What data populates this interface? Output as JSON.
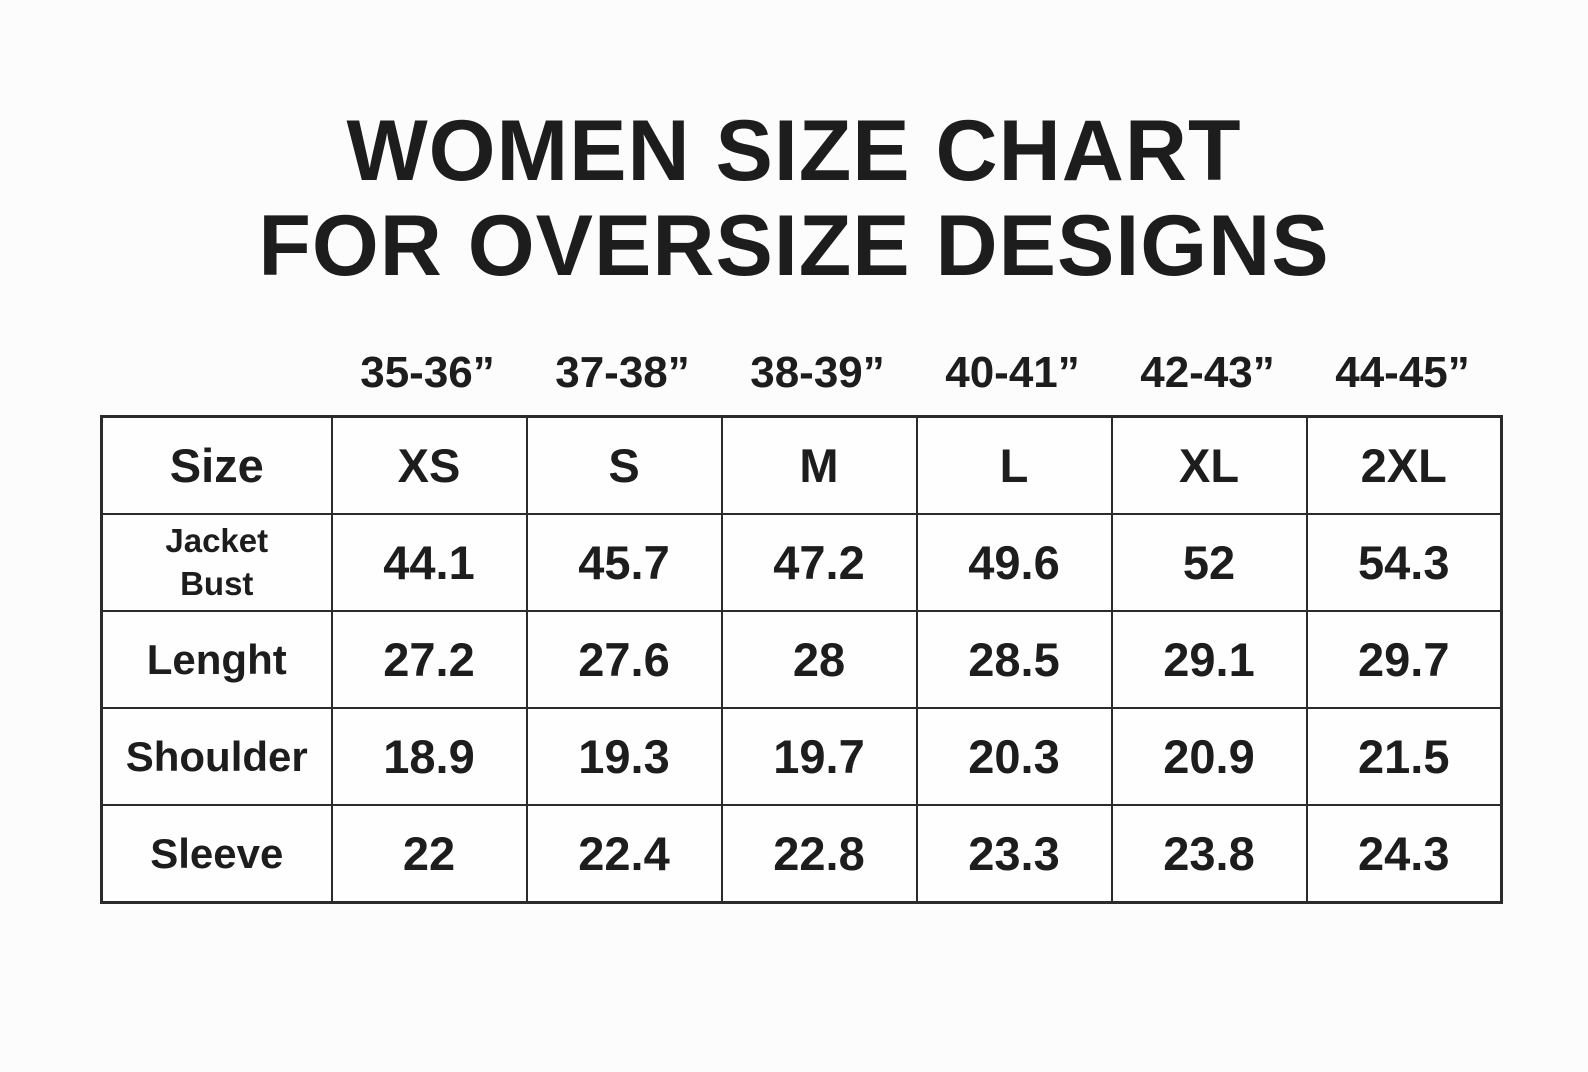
{
  "title": {
    "line1": "WOMEN SIZE CHART",
    "line2": "FOR OVERSIZE DESIGNS"
  },
  "bust_ranges": [
    "35-36”",
    "37-38”",
    "38-39”",
    "40-41”",
    "42-43”",
    "44-45”"
  ],
  "size_table": {
    "header": [
      "Size",
      "XS",
      "S",
      "M",
      "L",
      "XL",
      "2XL"
    ],
    "rows": [
      {
        "label": "Jacket Bust",
        "values": [
          "44.1",
          "45.7",
          "47.2",
          "49.6",
          "52",
          "54.3"
        ]
      },
      {
        "label": "Lenght",
        "values": [
          "27.2",
          "27.6",
          "28",
          "28.5",
          "29.1",
          "29.7"
        ]
      },
      {
        "label": "Shoulder",
        "values": [
          "18.9",
          "19.3",
          "19.7",
          "20.3",
          "20.9",
          "21.5"
        ]
      },
      {
        "label": "Sleeve",
        "values": [
          "22",
          "22.4",
          "22.8",
          "23.3",
          "23.8",
          "24.3"
        ]
      }
    ]
  },
  "chart_data": {
    "type": "table",
    "title": "WOMEN SIZE CHART FOR OVERSIZE DESIGNS",
    "bust_range_inches_per_size": [
      "35-36",
      "37-38",
      "38-39",
      "40-41",
      "42-43",
      "44-45"
    ],
    "columns": [
      "Size",
      "XS",
      "S",
      "M",
      "L",
      "XL",
      "2XL"
    ],
    "rows": [
      [
        "Jacket Bust",
        44.1,
        45.7,
        47.2,
        49.6,
        52,
        54.3
      ],
      [
        "Lenght",
        27.2,
        27.6,
        28,
        28.5,
        29.1,
        29.7
      ],
      [
        "Shoulder",
        18.9,
        19.3,
        19.7,
        20.3,
        20.9,
        21.5
      ],
      [
        "Sleeve",
        22,
        22.4,
        22.8,
        23.3,
        23.8,
        24.3
      ]
    ]
  },
  "colors": {
    "background": "#fcfcfc",
    "cell_background": "#fefefe",
    "border": "#2b2b2b",
    "text": "#1d1d1d"
  }
}
